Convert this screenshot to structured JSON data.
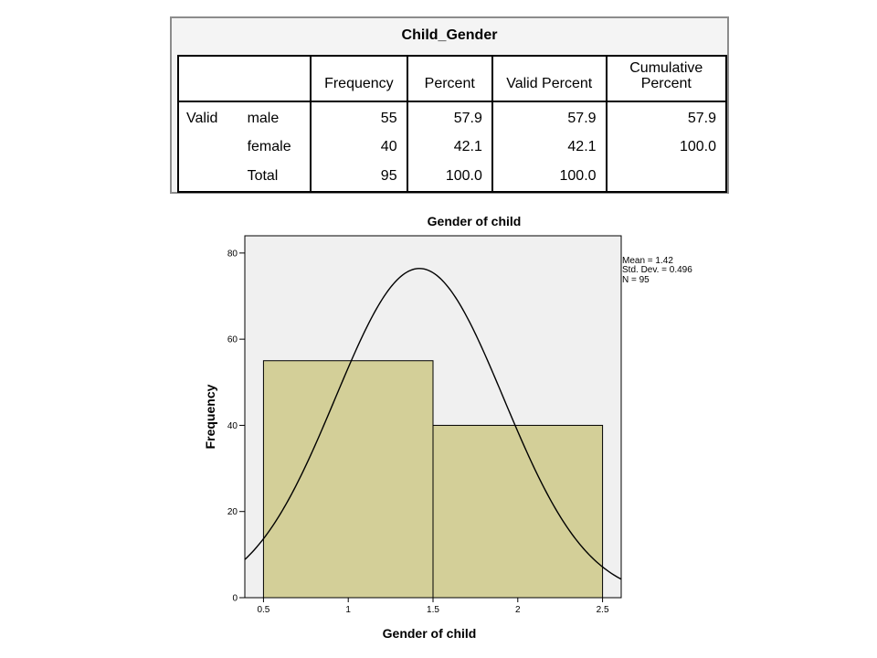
{
  "table": {
    "title": "Child_Gender",
    "columns": [
      "Frequency",
      "Percent",
      "Valid Percent",
      "Cumulative Percent"
    ],
    "rows": [
      {
        "group": "Valid",
        "label": "male",
        "frequency": "55",
        "percent": "57.9",
        "valid_percent": "57.9",
        "cumulative_percent": "57.9"
      },
      {
        "group": "",
        "label": "female",
        "frequency": "40",
        "percent": "42.1",
        "valid_percent": "42.1",
        "cumulative_percent": "100.0"
      },
      {
        "group": "",
        "label": "Total",
        "frequency": "95",
        "percent": "100.0",
        "valid_percent": "100.0",
        "cumulative_percent": ""
      }
    ]
  },
  "chart_data": {
    "type": "bar",
    "title": "Gender of child",
    "xlabel": "Gender of child",
    "ylabel": "Frequency",
    "bins": [
      {
        "x_start": 0.5,
        "x_end": 1.5,
        "value": 55
      },
      {
        "x_start": 1.5,
        "x_end": 2.5,
        "value": 40
      }
    ],
    "xticks": [
      "0.5",
      "1",
      "1.5",
      "2",
      "2.5"
    ],
    "yticks": [
      "0",
      "20",
      "40",
      "60",
      "80"
    ],
    "xlim": [
      0.39,
      2.61
    ],
    "ylim": [
      0,
      84
    ],
    "normal_curve": {
      "mean": 1.42,
      "std_dev": 0.496,
      "n": 95
    },
    "stats_lines": [
      "Mean = 1.42",
      "Std. Dev. = 0.496",
      "N = 95"
    ],
    "grid": false,
    "legend": "none",
    "colors": {
      "bar_fill": "#d3cf98",
      "plot_bg": "#f0f0f0",
      "curve": "#000000"
    }
  }
}
